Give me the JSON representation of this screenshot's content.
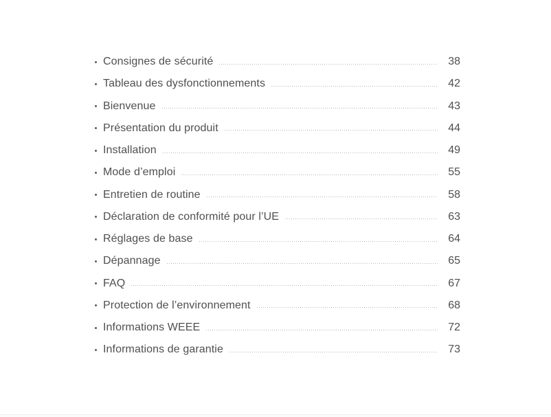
{
  "page": {
    "background_color": "#ffffff",
    "text_color": "#4f4f4f",
    "leader_color": "#b5b5b5",
    "bottom_edge_line_color": "#f0f0f0"
  },
  "toc": {
    "entries": [
      {
        "label": "Consignes de sécurité",
        "page": "38"
      },
      {
        "label": "Tableau des dysfonctionnements",
        "page": "42"
      },
      {
        "label": "Bienvenue",
        "page": "43"
      },
      {
        "label": "Présentation du produit",
        "page": "44"
      },
      {
        "label": "Installation",
        "page": "49"
      },
      {
        "label": "Mode d’emploi",
        "page": "55"
      },
      {
        "label": "Entretien de routine",
        "page": "58"
      },
      {
        "label": "Déclaration de conformité pour l’UE",
        "page": "63"
      },
      {
        "label": "Réglages de base",
        "page": "64"
      },
      {
        "label": "Dépannage",
        "page": "65"
      },
      {
        "label": "FAQ",
        "page": "67"
      },
      {
        "label": "Protection de l’environnement",
        "page": "68"
      },
      {
        "label": "Informations WEEE",
        "page": "72"
      },
      {
        "label": "Informations de garantie",
        "page": "73"
      }
    ]
  }
}
